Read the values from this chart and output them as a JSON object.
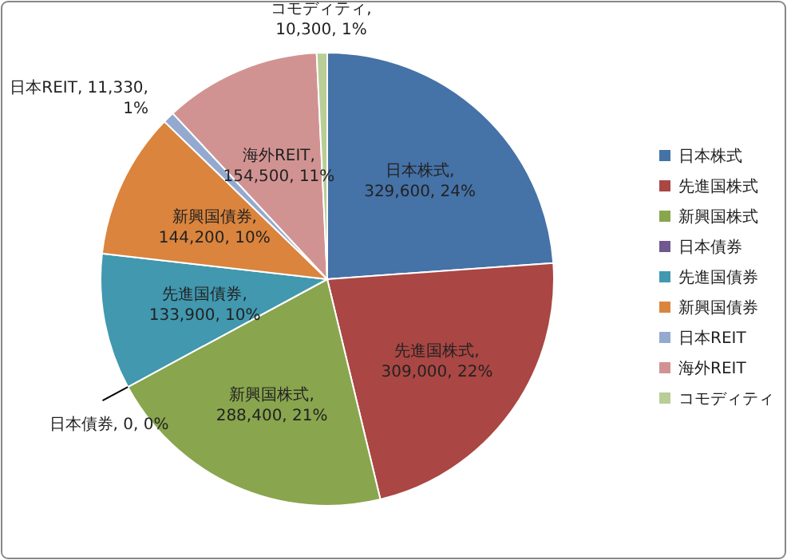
{
  "chart_data": {
    "type": "pie",
    "categories": [
      "日本株式",
      "先進国株式",
      "新興国株式",
      "日本債券",
      "先進国債券",
      "新興国債券",
      "日本REIT",
      "海外REIT",
      "コモディティ"
    ],
    "values": [
      329600,
      309000,
      288400,
      0,
      133900,
      144200,
      11330,
      154500,
      10300
    ],
    "colors": [
      "#4572a7",
      "#aa4643",
      "#89a54e",
      "#71588f",
      "#4198af",
      "#db843d",
      "#93a9cf",
      "#d19392",
      "#b9cd96"
    ],
    "value_labels": [
      "日本株式,\n329,600, 24%",
      "先進国株式,\n309,000, 22%",
      "新興国株式,\n288,400, 21%",
      "日本債券, 0, 0%",
      "先進国債券,\n133,900, 10%",
      "新興国債券,\n144,200, 10%",
      "日本REIT, 11,330,\n1%",
      "海外REIT,\n154,500, 11%",
      "コモディティ,\n10,300, 1%"
    ],
    "legend": "right"
  }
}
